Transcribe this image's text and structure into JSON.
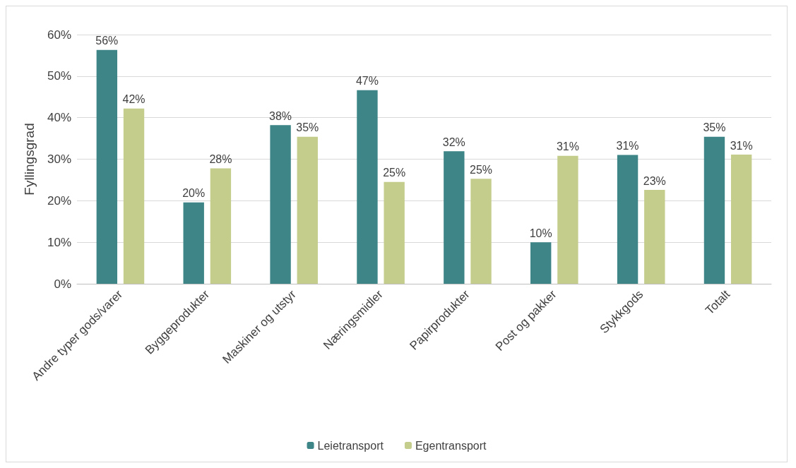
{
  "chart_data": {
    "type": "bar",
    "ylabel": "Fyllingsgrad",
    "categories": [
      "Andre typer gods/varer",
      "Byggeprodukter",
      "Maskiner og utstyr",
      "Næringsmidler",
      "Papirprodukter",
      "Post og pakker",
      "Stykkgods",
      "Totalt"
    ],
    "series": [
      {
        "name": "Leietransport",
        "color": "#3d8587",
        "values": [
          56.3,
          19.6,
          38.2,
          46.6,
          31.9,
          10,
          31,
          35.4
        ],
        "value_labels": [
          "56%",
          "20%",
          "38%",
          "47%",
          "32%",
          "10%",
          "31%",
          "35%"
        ]
      },
      {
        "name": "Egentransport",
        "color": "#c5cd8c",
        "values": [
          42.2,
          27.8,
          35.4,
          24.5,
          25.3,
          30.8,
          22.6,
          31.1
        ],
        "value_labels": [
          "42%",
          "28%",
          "35%",
          "25%",
          "25%",
          "31%",
          "23%",
          "31%"
        ]
      }
    ],
    "ylim": [
      0,
      60
    ],
    "yticks": [
      {
        "value": 0,
        "label": "0%"
      },
      {
        "value": 10,
        "label": "10%"
      },
      {
        "value": 20,
        "label": "20%"
      },
      {
        "value": 30,
        "label": "30%"
      },
      {
        "value": 40,
        "label": "40%"
      },
      {
        "value": 50,
        "label": "50%"
      },
      {
        "value": 60,
        "label": "60%"
      }
    ],
    "grid": "y",
    "legend": "bottom"
  }
}
